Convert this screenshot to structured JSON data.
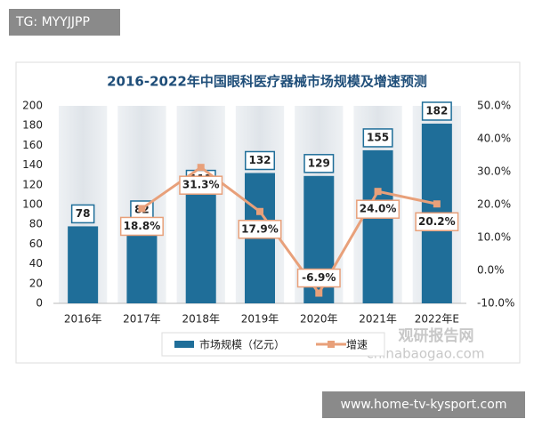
{
  "header_tag": "TG: MYYJJPP",
  "footer_url": "www.home-tv-kysport.com",
  "watermark": {
    "name": "观研报告网",
    "site": "chinabaogao.com"
  },
  "chart_data": {
    "type": "bar",
    "title": "2016-2022年中国眼科医疗器械市场规模及增速预测",
    "categories": [
      "2016年",
      "2017年",
      "2018年",
      "2019年",
      "2020年",
      "2021年",
      "2022年E"
    ],
    "series": [
      {
        "name": "市场规模（亿元）",
        "type": "bar",
        "color": "#1f6e99",
        "values": [
          78,
          82,
          113,
          132,
          129,
          155,
          182
        ]
      },
      {
        "name": "增速",
        "type": "line",
        "axis": "y2",
        "color": "#e8a07a",
        "values": [
          null,
          18.8,
          31.3,
          17.9,
          -6.9,
          24.0,
          20.2
        ],
        "value_labels": [
          null,
          "18.8%",
          "31.3%",
          "17.9%",
          "-6.9%",
          "24.0%",
          "20.2%"
        ]
      }
    ],
    "ylim": [
      0,
      200
    ],
    "yticks": [
      0,
      20,
      40,
      60,
      80,
      100,
      120,
      140,
      160,
      180,
      200
    ],
    "y2lim": [
      -10,
      50
    ],
    "y2ticks": [
      {
        "value": -10,
        "label": "-10.0%"
      },
      {
        "value": 0,
        "label": "0.0%"
      },
      {
        "value": 10,
        "label": "10.0%"
      },
      {
        "value": 20,
        "label": "20.0%"
      },
      {
        "value": 30,
        "label": "30.0%"
      },
      {
        "value": 40,
        "label": "40.0%"
      },
      {
        "value": 50,
        "label": "50.0%"
      }
    ],
    "legend": "bottom"
  }
}
